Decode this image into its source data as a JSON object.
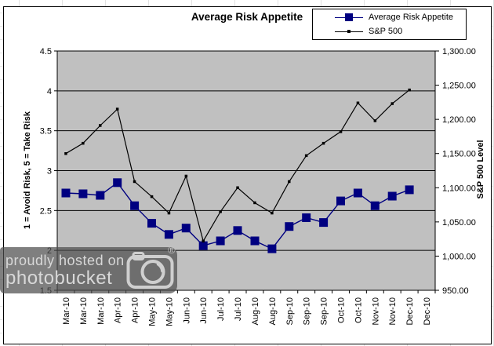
{
  "title": "Average Risk Appetite",
  "legend": {
    "items": [
      {
        "label": "Average Risk Appetite",
        "color": "#000080",
        "marker": "large-square"
      },
      {
        "label": "S&P 500",
        "color": "#000000",
        "marker": "small-square"
      }
    ]
  },
  "watermark": {
    "line1": "proudly hosted on",
    "line2": "photobucket",
    "registered": "®",
    "icon": "photobucket-camera-icon"
  },
  "colors": {
    "risk_series": "#000080",
    "sp500_series": "#000000",
    "plot_background": "#c0c0c0",
    "gridline": "#000000",
    "chart_background": "#ffffff"
  },
  "chart_data": {
    "type": "line",
    "title": "Average Risk Appetite",
    "categories": [
      "Mar-10",
      "Mar-10",
      "Mar-10",
      "Apr-10",
      "Apr-10",
      "May-10",
      "May-10",
      "Jun-10",
      "Jun-10",
      "Jul-10",
      "Jul-10",
      "Aug-10",
      "Aug-10",
      "Sep-10",
      "Sep-10",
      "Sep-10",
      "Oct-10",
      "Oct-10",
      "Nov-10",
      "Nov-10",
      "Dec-10",
      "Dec-10"
    ],
    "series": [
      {
        "name": "Average Risk Appetite",
        "axis": "left",
        "color": "#000080",
        "marker": "square",
        "values": [
          2.72,
          2.71,
          2.69,
          2.85,
          2.56,
          2.34,
          2.2,
          2.28,
          2.06,
          2.12,
          2.25,
          2.12,
          2.02,
          2.3,
          2.41,
          2.35,
          2.62,
          2.72,
          2.56,
          2.68,
          2.76,
          null
        ]
      },
      {
        "name": "S&P 500",
        "axis": "right",
        "color": "#000000",
        "marker": "small-square",
        "values": [
          1150,
          1165,
          1191,
          1215,
          1109,
          1087,
          1063,
          1117,
          1022,
          1065,
          1100,
          1078,
          1063,
          1109,
          1147,
          1165,
          1182,
          1224,
          1198,
          1223,
          1243,
          null
        ]
      }
    ],
    "left_axis": {
      "title": "1 = Avoid Risk, 5 = Take Risk",
      "min": 1.5,
      "max": 4.5,
      "step": 0.5,
      "tick_labels": [
        "4.5",
        "4",
        "3.5",
        "3",
        "2.5",
        "2",
        "1.5"
      ]
    },
    "right_axis": {
      "title": "S&P 500 Level",
      "min": 950,
      "max": 1300,
      "step": 50,
      "tick_labels": [
        "1,300.00",
        "1,250.00",
        "1,200.00",
        "1,150.00",
        "1,100.00",
        "1,050.00",
        "1,000.00",
        "950.00"
      ]
    },
    "grid": true,
    "legend_position": "top-right",
    "plot_background": "#c0c0c0"
  }
}
